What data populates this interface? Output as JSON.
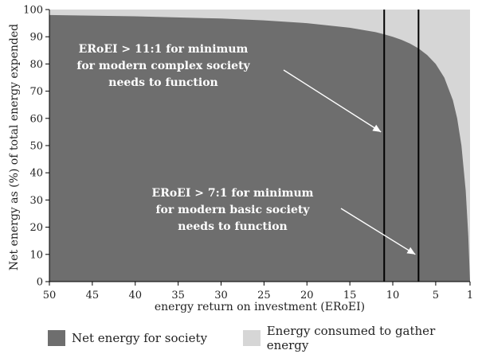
{
  "chart_data": {
    "type": "area",
    "title": "",
    "xlabel": "energy return on investment (ERoEI)",
    "ylabel": "Net energy as (%) of total energy expended",
    "xlim": [
      50,
      1
    ],
    "ylim": [
      0,
      100
    ],
    "x_ticks": [
      50,
      45,
      40,
      35,
      30,
      25,
      20,
      15,
      10,
      5,
      1
    ],
    "y_ticks": [
      0,
      10,
      20,
      30,
      40,
      50,
      60,
      70,
      80,
      90,
      100
    ],
    "series": [
      {
        "name": "Net energy for society",
        "color": "#6e6e6e",
        "x": [
          50,
          40,
          30,
          25,
          20,
          15,
          12,
          11,
          10,
          9,
          8,
          7,
          6,
          5,
          4,
          3,
          2.5,
          2,
          1.5,
          1.2,
          1
        ],
        "values": [
          98,
          97.5,
          96.7,
          96,
          95,
          93.3,
          91.7,
          90.9,
          90,
          88.9,
          87.5,
          85.7,
          83.3,
          80,
          75,
          66.7,
          60,
          50,
          33.3,
          16.7,
          0
        ]
      },
      {
        "name": "Energy consumed to gather energy",
        "color": "#d6d6d6",
        "x": [
          50,
          1
        ],
        "values": [
          100,
          100
        ]
      }
    ],
    "vlines": [
      11,
      7
    ],
    "annotations": [
      {
        "lines": [
          "ERoEI > 11:1 for minimum",
          "for modern complex society",
          "needs to function"
        ],
        "arrow_to": [
          11,
          55
        ]
      },
      {
        "lines": [
          "ERoEI > 7:1 for minimum",
          "for modern basic society",
          "needs to function"
        ],
        "arrow_to": [
          7,
          10
        ]
      }
    ],
    "legend_position": "bottom",
    "grid": false
  }
}
